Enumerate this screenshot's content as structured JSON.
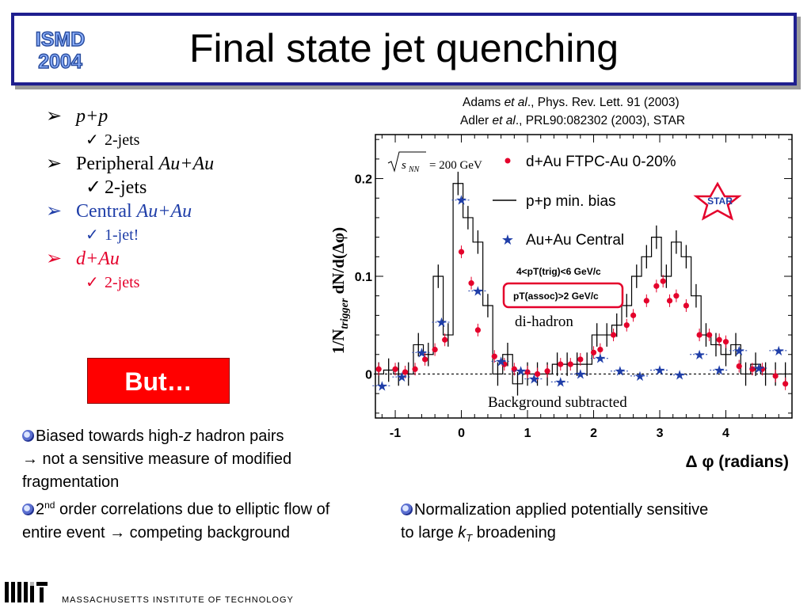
{
  "title": "Final state jet quenching",
  "logo": {
    "line1": "ISMD",
    "line2": "2004"
  },
  "references": [
    "Adams et al., Phys. Rev. Lett. 91 (2003)",
    "Adler et al., PRL90:082302 (2003), STAR"
  ],
  "ref_parts": [
    {
      "pre": "Adams ",
      "it": "et al",
      "post": "., Phys. Rev. Lett. 91 (2003)"
    },
    {
      "pre": "Adler ",
      "it": "et al",
      "post": "., PRL90:082302 (2003), STAR"
    }
  ],
  "bullets": [
    {
      "main_plain": "",
      "main_italic": "p+p",
      "sub": "2-jets",
      "color": "#000000"
    },
    {
      "main_plain": "Peripheral ",
      "main_italic": "Au+Au",
      "sub": "2-jets",
      "color": "#000000"
    },
    {
      "main_plain": "Central ",
      "main_italic": "Au+Au",
      "sub": "1-jet!",
      "color": "#1f3ea8"
    },
    {
      "main_plain": "",
      "main_italic": "d+Au",
      "sub": "2-jets",
      "color": "#e4002b"
    }
  ],
  "but_label": "But…",
  "notes": {
    "left1_a": "Biased towards high-",
    "left1_b": "z",
    "left1_c": " hadron pairs",
    "left1_d": "→ not a sensitive measure of modified fragmentation",
    "left2_a": "2",
    "left2_sup": "nd",
    "left2_b": " order correlations due to elliptic flow of entire event → competing background",
    "right_a": "Normalization applied potentially sensitive to large ",
    "right_k": "k",
    "right_sub": "T",
    "right_b": " broadening"
  },
  "footer_text": "MASSACHUSETTS INSTITUTE OF TECHNOLOGY",
  "colors": {
    "accent": "#1f1f8f",
    "red": "#e4002b",
    "blue": "#1f3ea8",
    "but_bg": "#ff0000"
  },
  "chart_data": {
    "type": "scatter",
    "xlabel": "Δ φ (radians)",
    "ylabel": "1/N_trigger dN/d(Δφ)",
    "xlim": [
      -1.3,
      5.0
    ],
    "ylim": [
      -0.045,
      0.245
    ],
    "xticks": [
      "-1",
      "0",
      "1",
      "2",
      "3",
      "4"
    ],
    "yticks": [
      "0",
      "0.1",
      "0.2"
    ],
    "energy_label": "= 200 GeV",
    "energy_symbol": "s",
    "energy_sub": "NN",
    "cuts": [
      "4<pT(trig)<6 GeV/c",
      "pT(assoc)>2 GeV/c"
    ],
    "annotations": [
      "di-hadron",
      "Background subtracted"
    ],
    "experiment_logo": "STAR",
    "series": [
      {
        "name": "d+Au FTPC-Au 0-20%",
        "marker": "circle",
        "color": "#e4002b",
        "x": [
          -1.25,
          -1.0,
          -0.85,
          -0.7,
          -0.55,
          -0.4,
          -0.25,
          0.0,
          0.15,
          0.25,
          0.5,
          0.65,
          0.8,
          1.0,
          1.15,
          1.3,
          1.5,
          1.65,
          1.8,
          2.0,
          2.1,
          2.3,
          2.5,
          2.6,
          2.8,
          2.95,
          3.05,
          3.15,
          3.25,
          3.4,
          3.6,
          3.75,
          3.9,
          4.0,
          4.2,
          4.4,
          4.55,
          4.75,
          4.9
        ],
        "y": [
          0.005,
          0.005,
          0.002,
          0.005,
          0.015,
          0.025,
          0.035,
          0.125,
          0.093,
          0.045,
          0.018,
          0.01,
          0.005,
          0.002,
          0.0,
          0.003,
          0.01,
          0.01,
          0.015,
          0.022,
          0.025,
          0.04,
          0.05,
          0.06,
          0.075,
          0.09,
          0.095,
          0.075,
          0.08,
          0.07,
          0.04,
          0.04,
          0.035,
          0.033,
          0.008,
          0.005,
          0.005,
          -0.002,
          -0.01
        ]
      },
      {
        "name": "p+p min. bias",
        "marker": "step",
        "color": "#000000",
        "x": [
          -1.25,
          -1.1,
          -0.95,
          -0.8,
          -0.65,
          -0.5,
          -0.35,
          -0.2,
          -0.05,
          0.1,
          0.25,
          0.4,
          0.55,
          0.7,
          0.85,
          1.0,
          1.15,
          1.3,
          1.45,
          1.6,
          1.75,
          1.9,
          2.05,
          2.2,
          2.35,
          2.5,
          2.65,
          2.8,
          2.95,
          3.1,
          3.25,
          3.4,
          3.55,
          3.7,
          3.85,
          4.0,
          4.15,
          4.3,
          4.45,
          4.6,
          4.75,
          4.9
        ],
        "y": [
          0.0,
          0.004,
          0.0,
          0.0,
          0.03,
          0.02,
          0.1,
          0.04,
          0.195,
          0.16,
          0.135,
          0.07,
          0.0,
          0.02,
          -0.01,
          0.0,
          0.0,
          0.0,
          0.01,
          0.01,
          0.01,
          0.01,
          0.04,
          0.04,
          0.05,
          0.07,
          0.1,
          0.12,
          0.14,
          0.1,
          0.135,
          0.12,
          0.08,
          0.04,
          0.03,
          0.02,
          0.03,
          0.0,
          0.01,
          0.0,
          0.0,
          0.0
        ]
      },
      {
        "name": "Au+Au Central",
        "marker": "star",
        "color": "#1f3ea8",
        "x": [
          -1.2,
          -0.9,
          -0.6,
          -0.3,
          0.0,
          0.25,
          0.6,
          0.9,
          1.1,
          1.5,
          1.8,
          2.1,
          2.4,
          2.7,
          3.0,
          3.3,
          3.6,
          3.9,
          4.2,
          4.5,
          4.8
        ],
        "y": [
          -0.012,
          -0.003,
          0.022,
          0.053,
          0.178,
          0.085,
          0.013,
          0.003,
          -0.005,
          -0.008,
          0.0,
          0.016,
          0.003,
          -0.002,
          0.004,
          -0.001,
          0.02,
          0.004,
          0.024,
          0.006,
          0.024
        ]
      }
    ]
  }
}
